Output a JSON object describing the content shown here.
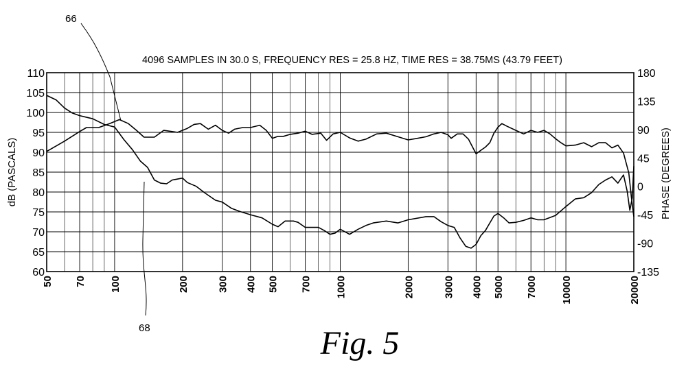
{
  "chart_data": {
    "type": "line",
    "title": "4096 SAMPLES IN 30.0 S, FREQUENCY RES = 25.8 HZ, TIME RES = 38.75MS (43.79 FEET)",
    "xlabel": "",
    "ylabel": "dB (PASCALS)",
    "y2label": "PHASE (DEGREES)",
    "xscale": "log",
    "xlim": [
      50,
      20000
    ],
    "ylim": [
      60,
      110
    ],
    "y2lim": [
      -135,
      180
    ],
    "x_ticks": [
      {
        "v": 50,
        "label": "50"
      },
      {
        "v": 70,
        "label": "70"
      },
      {
        "v": 100,
        "label": "100"
      },
      {
        "v": 200,
        "label": "200"
      },
      {
        "v": 300,
        "label": "300"
      },
      {
        "v": 400,
        "label": "400"
      },
      {
        "v": 500,
        "label": "500"
      },
      {
        "v": 700,
        "label": "700"
      },
      {
        "v": 1000,
        "label": "1000"
      },
      {
        "v": 2000,
        "label": "2000"
      },
      {
        "v": 3000,
        "label": "3000"
      },
      {
        "v": 4000,
        "label": "4000"
      },
      {
        "v": 5000,
        "label": "5000"
      },
      {
        "v": 7000,
        "label": "7000"
      },
      {
        "v": 10000,
        "label": "10000"
      },
      {
        "v": 20000,
        "label": "20000"
      }
    ],
    "x_minor_grid": [
      60,
      80,
      90,
      600,
      800,
      900,
      6000,
      8000,
      9000
    ],
    "y_ticks": [
      60,
      65,
      70,
      75,
      80,
      85,
      90,
      95,
      100,
      105,
      110
    ],
    "y2_ticks": [
      -135,
      -90,
      -45,
      0,
      45,
      90,
      135,
      180
    ],
    "grid": true,
    "series": [
      {
        "axis": "left",
        "points": [
          [
            50,
            90.2
          ],
          [
            60,
            92.8
          ],
          [
            70,
            95.2
          ],
          [
            75,
            96.2
          ],
          [
            85,
            96.2
          ],
          [
            95,
            97.2
          ],
          [
            105,
            98.2
          ],
          [
            115,
            97.2
          ],
          [
            125,
            95.5
          ],
          [
            135,
            93.8
          ],
          [
            150,
            93.8
          ],
          [
            165,
            95.5
          ],
          [
            190,
            95.0
          ],
          [
            210,
            96.0
          ],
          [
            225,
            97.0
          ],
          [
            240,
            97.2
          ],
          [
            260,
            95.8
          ],
          [
            280,
            96.8
          ],
          [
            300,
            95.5
          ],
          [
            320,
            94.8
          ],
          [
            340,
            95.8
          ],
          [
            370,
            96.2
          ],
          [
            400,
            96.2
          ],
          [
            440,
            96.8
          ],
          [
            470,
            95.5
          ],
          [
            500,
            93.5
          ],
          [
            530,
            94.0
          ],
          [
            560,
            94.0
          ],
          [
            600,
            94.5
          ],
          [
            650,
            94.8
          ],
          [
            700,
            95.3
          ],
          [
            750,
            94.5
          ],
          [
            820,
            94.8
          ],
          [
            870,
            93.0
          ],
          [
            930,
            94.6
          ],
          [
            1000,
            95.0
          ],
          [
            1100,
            93.6
          ],
          [
            1200,
            92.8
          ],
          [
            1300,
            93.3
          ],
          [
            1450,
            94.6
          ],
          [
            1600,
            94.8
          ],
          [
            1800,
            93.9
          ],
          [
            2000,
            93.1
          ],
          [
            2200,
            93.5
          ],
          [
            2400,
            93.9
          ],
          [
            2600,
            94.6
          ],
          [
            2800,
            95.0
          ],
          [
            3000,
            94.4
          ],
          [
            3100,
            93.5
          ],
          [
            3300,
            94.6
          ],
          [
            3500,
            94.6
          ],
          [
            3700,
            93.3
          ],
          [
            3900,
            90.8
          ],
          [
            4000,
            89.6
          ],
          [
            4200,
            90.5
          ],
          [
            4400,
            91.3
          ],
          [
            4600,
            92.4
          ],
          [
            4800,
            94.8
          ],
          [
            5000,
            96.3
          ],
          [
            5200,
            97.2
          ],
          [
            5500,
            96.5
          ],
          [
            6000,
            95.5
          ],
          [
            6500,
            94.6
          ],
          [
            7000,
            95.5
          ],
          [
            7500,
            95.0
          ],
          [
            8000,
            95.5
          ],
          [
            8500,
            94.6
          ],
          [
            9000,
            93.4
          ],
          [
            9500,
            92.4
          ],
          [
            10000,
            91.6
          ],
          [
            11000,
            91.8
          ],
          [
            12000,
            92.4
          ],
          [
            13000,
            91.4
          ],
          [
            14000,
            92.4
          ],
          [
            15000,
            92.4
          ],
          [
            16000,
            91.1
          ],
          [
            17000,
            91.8
          ],
          [
            18000,
            89.8
          ],
          [
            19000,
            84.8
          ],
          [
            19500,
            78.8
          ],
          [
            20000,
            73.8
          ]
        ]
      },
      {
        "axis": "right",
        "points": [
          [
            50,
            144
          ],
          [
            55,
            137
          ],
          [
            60,
            124
          ],
          [
            65,
            116
          ],
          [
            70,
            112
          ],
          [
            80,
            107
          ],
          [
            90,
            98
          ],
          [
            100,
            94
          ],
          [
            110,
            74
          ],
          [
            120,
            58
          ],
          [
            130,
            40
          ],
          [
            140,
            30
          ],
          [
            150,
            10
          ],
          [
            160,
            5
          ],
          [
            170,
            4
          ],
          [
            180,
            10
          ],
          [
            200,
            13
          ],
          [
            210,
            6
          ],
          [
            230,
            0
          ],
          [
            250,
            -10
          ],
          [
            280,
            -22
          ],
          [
            300,
            -25
          ],
          [
            330,
            -35
          ],
          [
            360,
            -40
          ],
          [
            400,
            -45
          ],
          [
            450,
            -50
          ],
          [
            500,
            -60
          ],
          [
            530,
            -64
          ],
          [
            570,
            -55
          ],
          [
            620,
            -55
          ],
          [
            650,
            -57
          ],
          [
            700,
            -65
          ],
          [
            750,
            -65
          ],
          [
            800,
            -65
          ],
          [
            850,
            -70
          ],
          [
            900,
            -76
          ],
          [
            950,
            -74
          ],
          [
            1000,
            -68
          ],
          [
            1100,
            -76
          ],
          [
            1200,
            -68
          ],
          [
            1300,
            -62
          ],
          [
            1400,
            -58
          ],
          [
            1600,
            -55
          ],
          [
            1800,
            -58
          ],
          [
            2000,
            -53
          ],
          [
            2400,
            -48
          ],
          [
            2600,
            -48
          ],
          [
            2800,
            -56
          ],
          [
            3000,
            -62
          ],
          [
            3200,
            -65
          ],
          [
            3400,
            -82
          ],
          [
            3600,
            -95
          ],
          [
            3800,
            -98
          ],
          [
            4000,
            -92
          ],
          [
            4200,
            -78
          ],
          [
            4400,
            -70
          ],
          [
            4600,
            -58
          ],
          [
            4800,
            -47
          ],
          [
            5000,
            -43
          ],
          [
            5300,
            -50
          ],
          [
            5600,
            -58
          ],
          [
            6000,
            -57
          ],
          [
            6500,
            -54
          ],
          [
            7000,
            -50
          ],
          [
            7500,
            -53
          ],
          [
            8000,
            -53
          ],
          [
            9000,
            -46
          ],
          [
            10000,
            -32
          ],
          [
            11000,
            -20
          ],
          [
            12000,
            -18
          ],
          [
            13000,
            -10
          ],
          [
            14000,
            3
          ],
          [
            15000,
            10
          ],
          [
            16000,
            15
          ],
          [
            17000,
            5
          ],
          [
            18000,
            18
          ],
          [
            18700,
            -8
          ],
          [
            19200,
            -38
          ],
          [
            19700,
            -18
          ],
          [
            20000,
            32
          ]
        ]
      }
    ],
    "annotations": [
      {
        "label": "66"
      },
      {
        "label": "68"
      }
    ]
  },
  "caption": "Fig. 5"
}
